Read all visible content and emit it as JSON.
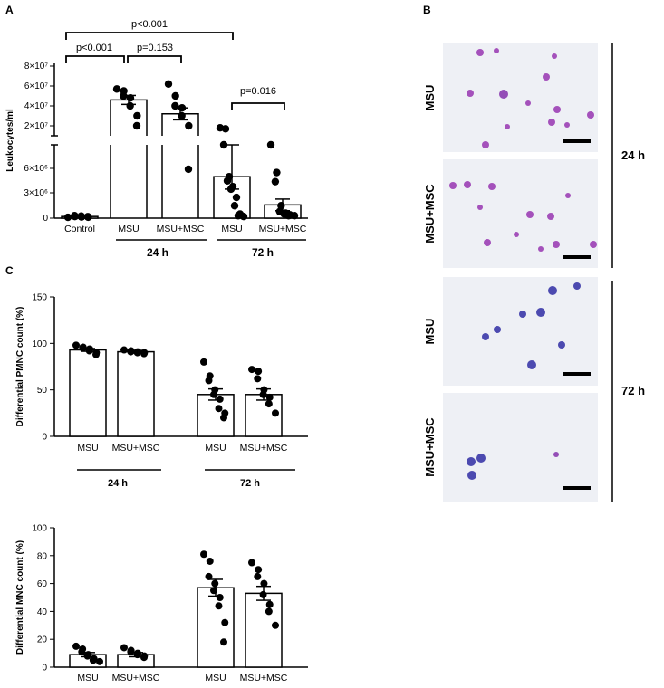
{
  "panel_letters": {
    "a": "A",
    "b": "B",
    "c": "C"
  },
  "chart_data": [
    {
      "type": "bar",
      "panel": "A",
      "ylabel": "Leukocytes/ml",
      "y_scale": "broken (lower segment 0–6e6, upper segment 1e7–8e7)",
      "upper_ticks": [
        "8×10⁷",
        "6×10⁷",
        "4×10⁷",
        "2×10⁷"
      ],
      "lower_ticks": [
        "6×10⁶",
        "3×10⁶",
        "0"
      ],
      "categories": [
        "Control",
        "MSU",
        "MSU+MSC",
        "MSU",
        "MSU+MSC"
      ],
      "groups": [
        {
          "label": "24 h",
          "categories": [
            1,
            2
          ]
        },
        {
          "label": "72 h",
          "categories": [
            3,
            4
          ]
        }
      ],
      "means": [
        200000,
        46000000,
        32000000,
        5000000,
        1600000
      ],
      "errors": [
        50000,
        4500000,
        6000000,
        1500000,
        700000
      ],
      "points": [
        [
          100000,
          200000,
          300000,
          150000,
          250000,
          120000,
          180000
        ],
        [
          57000000,
          55000000,
          50000000,
          48000000,
          40000000,
          30000000,
          20000000
        ],
        [
          62000000,
          50000000,
          40000000,
          38000000,
          30000000,
          20000000,
          5900000
        ],
        [
          18000000,
          17000000,
          6800000,
          5000000,
          4500000,
          3800000,
          3500000,
          2500000,
          1500000,
          500000,
          300000,
          200000
        ],
        [
          6700000,
          5500000,
          4400000,
          1500000,
          800000,
          600000,
          500000,
          400000,
          300000,
          300000
        ]
      ],
      "comparisons": [
        {
          "between": [
            0,
            1
          ],
          "label": "p<0.001"
        },
        {
          "between": [
            1,
            2
          ],
          "label": "p=0.153"
        },
        {
          "between": [
            0,
            3
          ],
          "label": "p<0.001"
        },
        {
          "between": [
            3,
            4
          ],
          "label": "p=0.016"
        }
      ]
    },
    {
      "type": "bar",
      "panel": "C-top",
      "ylabel": "Differential PMNC count (%)",
      "ylim": [
        0,
        150
      ],
      "yticks": [
        0,
        50,
        100,
        150
      ],
      "categories": [
        "MSU",
        "MSU+MSC",
        "MSU",
        "MSU+MSC"
      ],
      "groups": [
        {
          "label": "24 h",
          "categories": [
            0,
            1
          ]
        },
        {
          "label": "72 h",
          "categories": [
            2,
            3
          ]
        }
      ],
      "means": [
        93,
        91,
        45,
        45
      ],
      "errors": [
        1.5,
        1.5,
        6,
        6
      ],
      "points": [
        [
          98,
          96,
          95,
          94,
          92,
          90,
          88
        ],
        [
          93,
          92,
          91,
          91,
          90,
          90,
          89
        ],
        [
          80,
          65,
          60,
          50,
          45,
          40,
          30,
          25,
          20
        ],
        [
          72,
          70,
          62,
          50,
          45,
          42,
          35,
          25
        ]
      ]
    },
    {
      "type": "bar",
      "panel": "C-bottom",
      "ylabel": "Differential MNC count (%)",
      "ylim": [
        0,
        100
      ],
      "yticks": [
        0,
        20,
        40,
        60,
        80,
        100
      ],
      "categories": [
        "MSU",
        "MSU+MSC",
        "MSU",
        "MSU+MSC"
      ],
      "means": [
        9,
        9,
        57,
        53
      ],
      "errors": [
        1.5,
        1.5,
        6,
        5
      ],
      "points": [
        [
          15,
          13,
          11,
          9,
          8,
          6,
          5,
          4
        ],
        [
          14,
          12,
          11,
          10,
          9,
          8,
          7
        ],
        [
          81,
          76,
          65,
          60,
          55,
          50,
          44,
          32,
          18
        ],
        [
          75,
          70,
          65,
          60,
          52,
          45,
          40,
          30
        ]
      ]
    }
  ],
  "micrographs": {
    "row_labels": [
      "MSU",
      "MSU+MSC",
      "MSU",
      "MSU+MSC"
    ],
    "time_labels": [
      "24 h",
      "72 h"
    ]
  }
}
